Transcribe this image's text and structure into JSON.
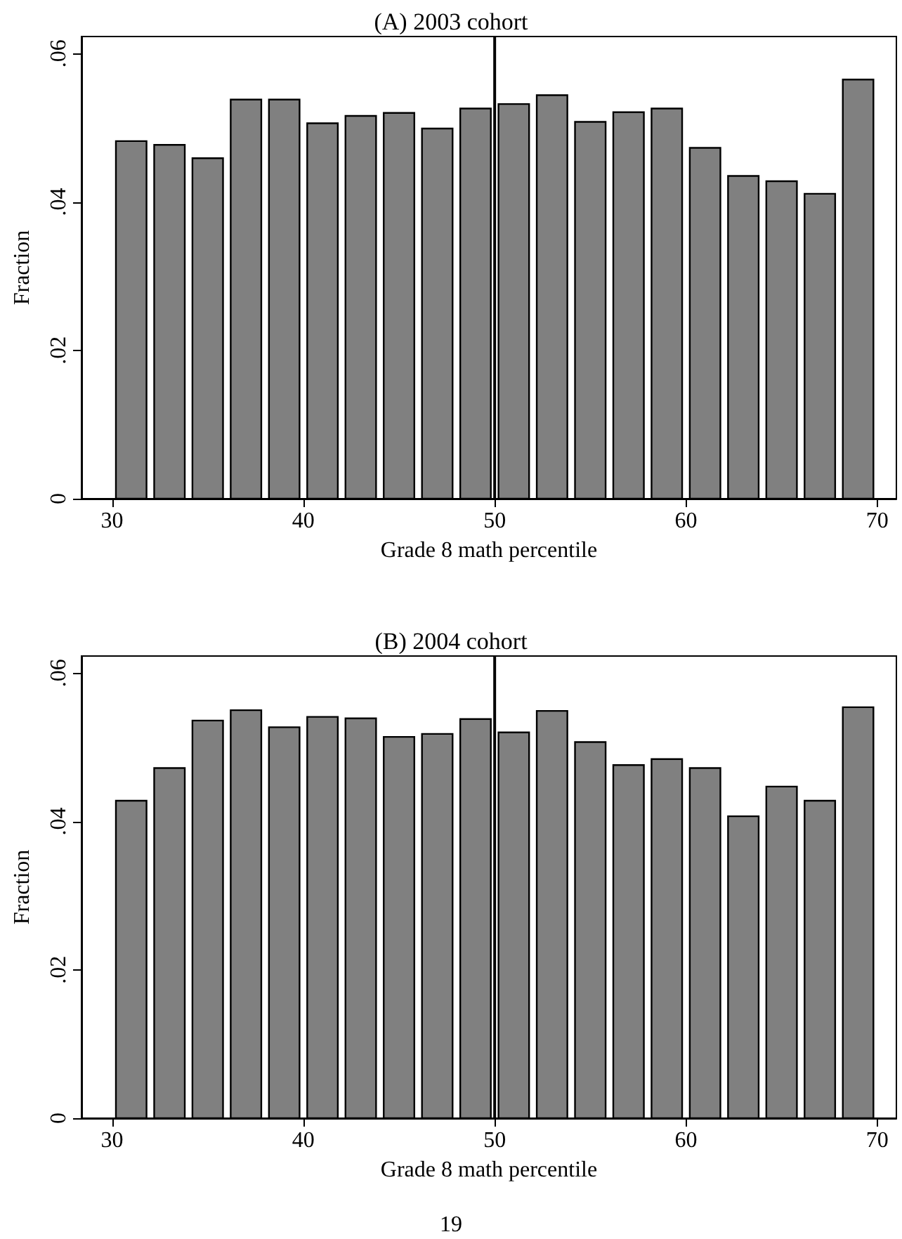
{
  "chart_data": [
    {
      "type": "histogram",
      "title": "(A) 2003 cohort",
      "xlabel": "Grade 8 math percentile",
      "ylabel": "Fraction",
      "color": "#808080",
      "bins": [
        30,
        32,
        34,
        36,
        38,
        40,
        42,
        44,
        46,
        48,
        50,
        52,
        54,
        56,
        58,
        60,
        62,
        64,
        66,
        68,
        70
      ],
      "values": [
        0.0482,
        0.0477,
        0.0459,
        0.0538,
        0.0538,
        0.0506,
        0.0516,
        0.052,
        0.0499,
        0.0526,
        0.0532,
        0.0544,
        0.0508,
        0.0521,
        0.0526,
        0.0473,
        0.0435,
        0.0428,
        0.0411,
        0.0565
      ],
      "xlim": [
        28.4,
        71
      ],
      "xticks": [
        30,
        40,
        50,
        60,
        70
      ],
      "ylim": [
        0,
        0.0623
      ],
      "yticks": [
        0,
        {
          "value": 0.02,
          "label": ".02"
        },
        {
          "value": 0.04,
          "label": ".04"
        },
        {
          "value": 0.06,
          "label": ".06"
        }
      ],
      "ref_lines": [
        {
          "axis": "x",
          "value": 50,
          "label": null,
          "color": "#000000"
        }
      ],
      "grid": false
    },
    {
      "type": "histogram",
      "title": "(B) 2004 cohort",
      "xlabel": "Grade 8 math percentile",
      "ylabel": "Fraction",
      "color": "#808080",
      "bins": [
        30,
        32,
        34,
        36,
        38,
        40,
        42,
        44,
        46,
        48,
        50,
        52,
        54,
        56,
        58,
        60,
        62,
        64,
        66,
        68,
        70
      ],
      "values": [
        0.0428,
        0.0472,
        0.0536,
        0.055,
        0.0527,
        0.0541,
        0.0539,
        0.0514,
        0.0518,
        0.0538,
        0.052,
        0.0549,
        0.0507,
        0.0476,
        0.0484,
        0.0472,
        0.0407,
        0.0447,
        0.0428,
        0.0554
      ],
      "xlim": [
        28.4,
        71
      ],
      "xticks": [
        30,
        40,
        50,
        60,
        70
      ],
      "ylim": [
        0,
        0.0623
      ],
      "yticks": [
        0,
        {
          "value": 0.02,
          "label": ".02"
        },
        {
          "value": 0.04,
          "label": ".04"
        },
        {
          "value": 0.06,
          "label": ".06"
        }
      ],
      "ref_lines": [
        {
          "axis": "x",
          "value": 50,
          "label": null,
          "color": "#000000"
        }
      ],
      "annotations": [
        "19"
      ],
      "grid": false
    }
  ]
}
